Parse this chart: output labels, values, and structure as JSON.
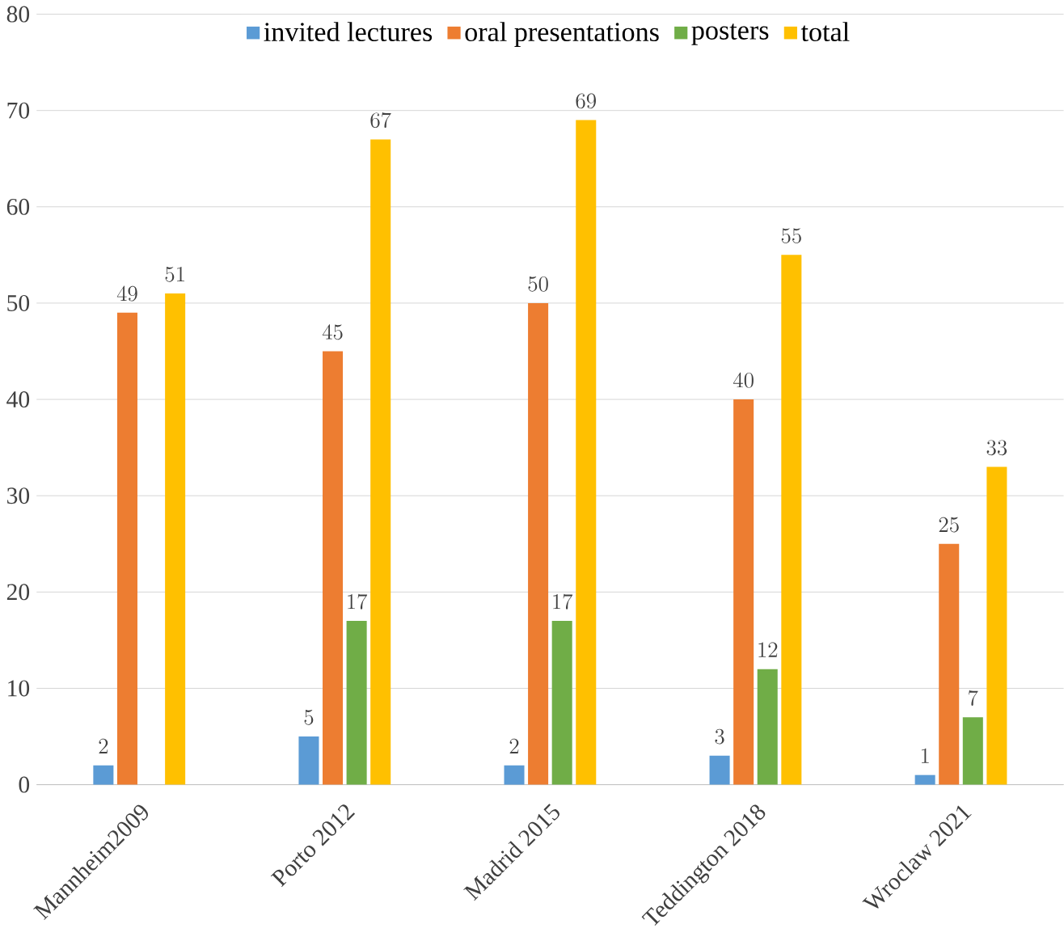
{
  "chart_data": {
    "type": "bar",
    "categories": [
      "Mannheim2009",
      "Porto 2012",
      "Madrid 2015",
      "Teddington 2018",
      "Wroclaw 2021"
    ],
    "series": [
      {
        "name": "invited lectures",
        "color": "#5b9bd5",
        "values": [
          2,
          5,
          2,
          3,
          1
        ]
      },
      {
        "name": "oral presentations",
        "color": "#ed7d31",
        "values": [
          49,
          45,
          50,
          40,
          25
        ]
      },
      {
        "name": "posters",
        "color": "#70ad47",
        "values": [
          null,
          17,
          17,
          12,
          7
        ]
      },
      {
        "name": "total",
        "color": "#ffc000",
        "values": [
          51,
          67,
          69,
          55,
          33
        ]
      }
    ],
    "ylim": [
      0,
      80
    ],
    "yticks": [
      0,
      10,
      20,
      30,
      40,
      50,
      60,
      70,
      80
    ],
    "grid": "y",
    "legend": "top",
    "data_labels": true
  }
}
